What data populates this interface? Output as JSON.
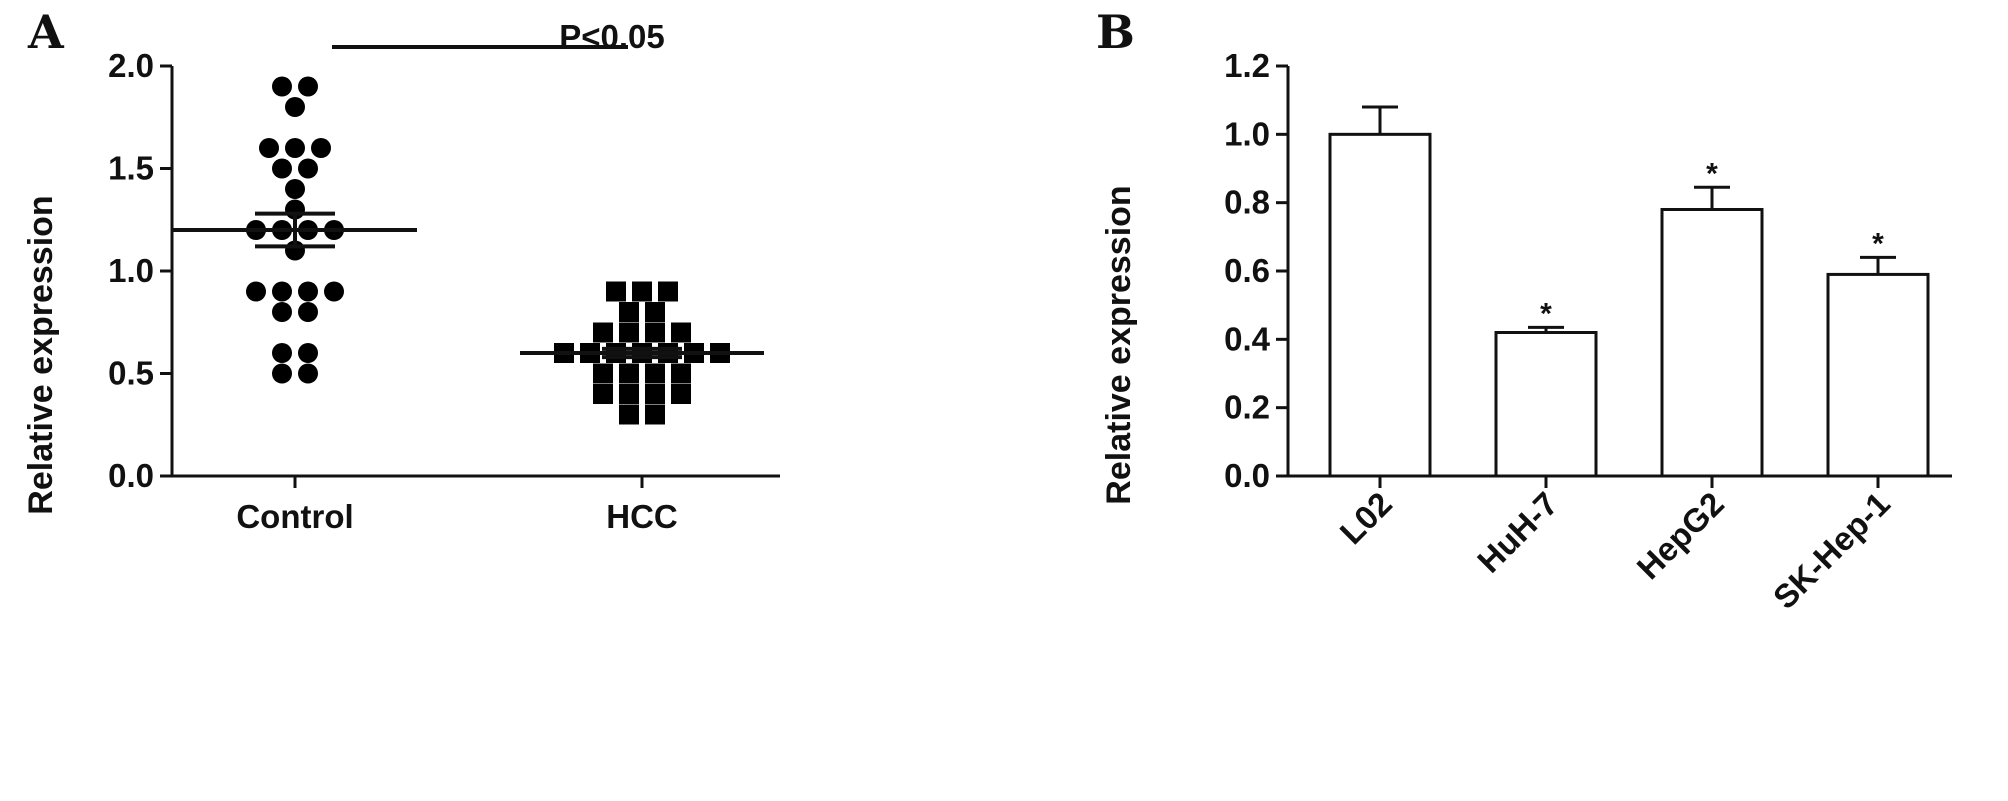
{
  "chart_data": [
    {
      "panel": "A",
      "type": "scatter",
      "ylabel": "Relative expression",
      "ylim": [
        0,
        2.0
      ],
      "yticks": [
        "0.0",
        "0.5",
        "1.0",
        "1.5",
        "2.0"
      ],
      "categories": [
        "Control",
        "HCC"
      ],
      "annotation": "P<0.05",
      "series": [
        {
          "category": "Control",
          "marker": "circle",
          "mean": 1.2,
          "sem": [
            1.12,
            1.28
          ],
          "values": [
            1.9,
            1.9,
            1.8,
            1.6,
            1.6,
            1.6,
            1.5,
            1.5,
            1.4,
            1.3,
            1.2,
            1.2,
            1.2,
            1.2,
            1.1,
            0.9,
            0.9,
            0.9,
            0.9,
            0.8,
            0.8,
            0.6,
            0.6,
            0.5,
            0.5
          ]
        },
        {
          "category": "HCC",
          "marker": "square",
          "mean": 0.6,
          "sem": [
            0.58,
            0.62
          ],
          "values": [
            0.9,
            0.9,
            0.9,
            0.8,
            0.8,
            0.7,
            0.7,
            0.7,
            0.7,
            0.6,
            0.6,
            0.6,
            0.6,
            0.6,
            0.6,
            0.6,
            0.5,
            0.5,
            0.5,
            0.5,
            0.4,
            0.4,
            0.4,
            0.4,
            0.3,
            0.3
          ]
        }
      ]
    },
    {
      "panel": "B",
      "type": "bar",
      "ylabel": "Relative expression",
      "ylim": [
        0,
        1.2
      ],
      "yticks": [
        "0.0",
        "0.2",
        "0.4",
        "0.6",
        "0.8",
        "1.0",
        "1.2"
      ],
      "categories": [
        "L02",
        "HuH-7",
        "HepG2",
        "SK-Hep-1"
      ],
      "values": [
        1.0,
        0.42,
        0.78,
        0.59
      ],
      "errors": [
        0.08,
        0.015,
        0.065,
        0.05
      ],
      "significance": [
        "",
        "*",
        "*",
        "*"
      ]
    }
  ]
}
